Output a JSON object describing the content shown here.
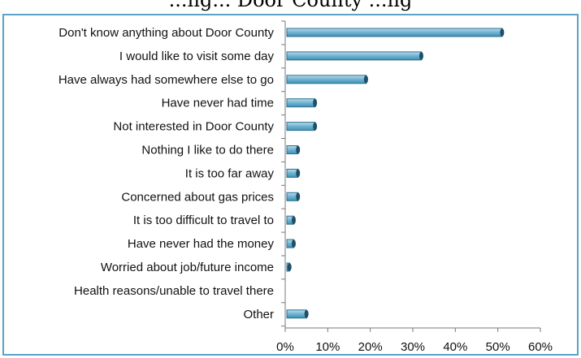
{
  "title_fragment": "...ng... Door County ...ng",
  "chart_data": {
    "type": "bar",
    "orientation": "horizontal",
    "categories": [
      "Don't know anything about Door County",
      "I would like to visit some day",
      "Have always had somewhere else to go",
      "Have never had time",
      "Not interested in Door County",
      "Nothing I like to do there",
      "It is too far away",
      "Concerned about gas prices",
      "It is too difficult to travel to",
      "Have never had the money",
      "Worried about job/future income",
      "Health reasons/unable to travel there",
      "Other"
    ],
    "values": [
      51,
      32,
      19,
      7,
      7,
      3,
      3,
      3,
      2,
      2,
      1,
      0,
      5
    ],
    "x_ticks": [
      "0%",
      "10%",
      "20%",
      "30%",
      "40%",
      "50%",
      "60%"
    ],
    "xlim": [
      0,
      60
    ],
    "grid": false,
    "bar_color": "#6fb3cf",
    "bar_edge_color": "#2c6f8f"
  }
}
